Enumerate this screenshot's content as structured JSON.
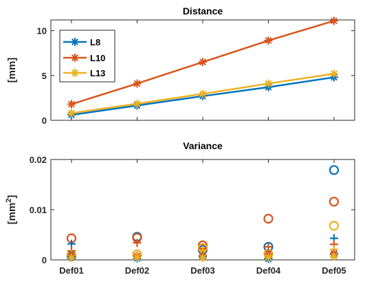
{
  "chart_data": [
    {
      "type": "line",
      "title": "Distance",
      "ylabel": "[mm]",
      "x": [
        "Def01",
        "Def02",
        "Def03",
        "Def04",
        "Def05"
      ],
      "ylim": [
        0,
        11.2
      ],
      "yticks": [
        0,
        5,
        10
      ],
      "marker": "asterisk",
      "legend_position": "top-left",
      "series": [
        {
          "name": "L8",
          "color": "#0072BD",
          "values": [
            0.6,
            1.65,
            2.7,
            3.7,
            4.8
          ]
        },
        {
          "name": "L10",
          "color": "#D95319",
          "values": [
            1.8,
            4.1,
            6.5,
            8.9,
            11.1
          ]
        },
        {
          "name": "L13",
          "color": "#EDB120",
          "values": [
            0.8,
            1.85,
            2.95,
            4.1,
            5.2
          ]
        }
      ]
    },
    {
      "type": "scatter",
      "title": "Variance",
      "ylabel": "[mm",
      "ylabel_superscript": "2",
      "ylabel_close": "]",
      "x": [
        "Def01",
        "Def02",
        "Def03",
        "Def04",
        "Def05"
      ],
      "ylim": [
        0,
        0.02
      ],
      "yticks": [
        0,
        0.01,
        0.02
      ],
      "ytick_labels": [
        "0",
        "0.01",
        "0.02"
      ],
      "series": [
        {
          "name": "L8",
          "color": "#0072BD",
          "marker": "circle",
          "values": [
            0.0007,
            0.0046,
            0.002,
            0.0026,
            0.0179
          ]
        },
        {
          "name": "L10",
          "color": "#D95319",
          "marker": "circle",
          "values": [
            0.0043,
            0.0044,
            0.0029,
            0.0082,
            0.0116
          ]
        },
        {
          "name": "L13",
          "color": "#EDB120",
          "marker": "circle",
          "values": [
            0.001,
            0.0011,
            0.0024,
            0.0012,
            0.0068
          ]
        },
        {
          "name": "L8",
          "color": "#0072BD",
          "marker": "plus",
          "values": [
            0.0032,
            0.0004,
            0.0009,
            0.0003,
            0.0043
          ]
        },
        {
          "name": "L10",
          "color": "#D95319",
          "marker": "plus",
          "values": [
            0.0018,
            0.0034,
            0.0023,
            0.0026,
            0.0031
          ]
        },
        {
          "name": "L13",
          "color": "#EDB120",
          "marker": "plus",
          "values": [
            0.0012,
            0.0008,
            0.0019,
            0.0007,
            0.0021
          ]
        },
        {
          "name": "L8",
          "color": "#0072BD",
          "marker": "asterisk",
          "values": [
            0.0006,
            0.0003,
            0.0006,
            0.0002,
            0.0011
          ]
        },
        {
          "name": "L10",
          "color": "#D95319",
          "marker": "asterisk",
          "values": [
            0.0009,
            0.0008,
            0.0009,
            0.0012,
            0.0013
          ]
        },
        {
          "name": "L13",
          "color": "#EDB120",
          "marker": "asterisk",
          "values": [
            0.0004,
            0.0005,
            0.0004,
            0.0005,
            0.0007
          ]
        }
      ]
    }
  ]
}
